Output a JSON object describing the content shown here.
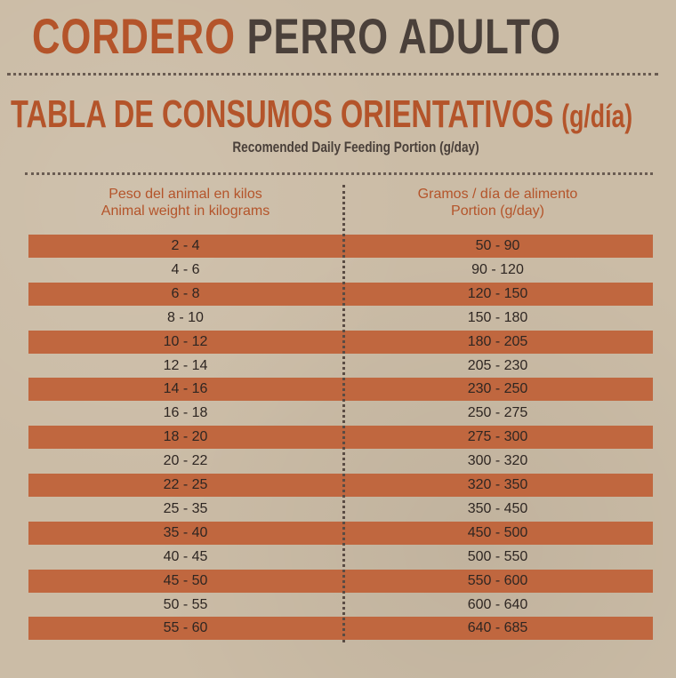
{
  "title": {
    "part1": "CORDERO",
    "part2": "PERRO ADULTO"
  },
  "table_title": {
    "main": "TABLA DE CONSUMOS ORIENTATIVOS",
    "unit": "(g/día)",
    "subtitle": "Recomended Daily Feeding Portion (g/day)"
  },
  "headers": {
    "col1": [
      "Peso del animal en kilos",
      "Animal weight in kilograms"
    ],
    "col2": [
      "Gramos / día de alimento",
      "Portion (g/day)"
    ]
  },
  "colors": {
    "accent": "#b4542a",
    "stripe": "#c0673f",
    "text": "#4a403a",
    "background": "#cbbca6"
  },
  "rows": [
    [
      "2 - 4",
      "50 - 90"
    ],
    [
      "4 - 6",
      "90 - 120"
    ],
    [
      "6 - 8",
      "120 - 150"
    ],
    [
      "8 - 10",
      "150 - 180"
    ],
    [
      "10 - 12",
      "180 - 205"
    ],
    [
      "12 - 14",
      "205 - 230"
    ],
    [
      "14 - 16",
      "230 - 250"
    ],
    [
      "16 - 18",
      "250 - 275"
    ],
    [
      "18 - 20",
      "275 - 300"
    ],
    [
      "20 - 22",
      "300 - 320"
    ],
    [
      "22 - 25",
      "320 - 350"
    ],
    [
      "25 - 35",
      "350 - 450"
    ],
    [
      "35 - 40",
      "450 - 500"
    ],
    [
      "40 - 45",
      "500 - 550"
    ],
    [
      "45 - 50",
      "550 - 600"
    ],
    [
      "50 - 55",
      "600 - 640"
    ],
    [
      "55 - 60",
      "640 - 685"
    ]
  ]
}
